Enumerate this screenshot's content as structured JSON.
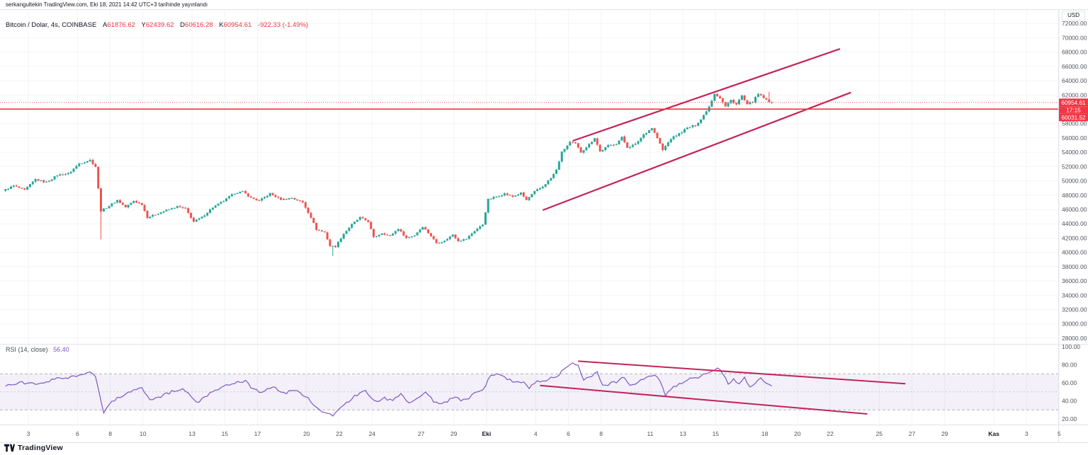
{
  "publish_note": "serkangultekin TradingView.com, Eki 18, 2021 14:42 UTC+3 tarihinde yayınlandı",
  "currency_button": "USD",
  "symbol_header": {
    "title": "Bitcoin / Dolar, 4s, COINBASE",
    "ohlc": [
      {
        "k": "A",
        "v": "61876.62"
      },
      {
        "k": "Y",
        "v": "62439.62"
      },
      {
        "k": "D",
        "v": "60616.28"
      },
      {
        "k": "K",
        "v": "60954.61"
      }
    ],
    "change": "-922.33 (-1.49%)"
  },
  "rsi_header": {
    "label": "RSI",
    "params": "(14, close)",
    "value": "56.40"
  },
  "axis_badges": {
    "last": "60954.61",
    "countdown": "17:15",
    "hline": "60031.52"
  },
  "logo": {
    "name": "TradingView"
  },
  "colors": {
    "up": "#26a69a",
    "down": "#ef5350",
    "red_line": "#f23645",
    "badge": "#f23645",
    "channel": "#c2235a",
    "rsi_line": "#7e57c2",
    "rsi_band_fill": "rgba(126,87,194,0.09)",
    "band_edge": "rgba(120,123,134,0.55)",
    "band_mid": "rgba(120,123,134,0.35)",
    "grid": "rgba(42,46,57,0.05)",
    "separator": "#e0e3eb",
    "axis_text": "#50535e",
    "month_text": "#131722"
  },
  "chart_data": {
    "type": "candlestick",
    "symbol": "Bitcoin / Dolar",
    "exchange": "COINBASE",
    "interval": "4s",
    "ohlc_current": {
      "open": 61876.62,
      "high": 62439.62,
      "low": 60616.28,
      "close": 60954.61,
      "change": -922.33,
      "change_pct": -1.49
    },
    "last_close": 60954.61,
    "hline_price": 60031.52,
    "n_candles": 282,
    "price_axis": {
      "min": 28000,
      "max": 72000,
      "step": 2000
    },
    "rsi_axis": {
      "ticks": [
        100,
        80,
        60,
        40,
        20
      ],
      "bands": [
        70,
        50,
        30
      ]
    },
    "x_ticks": [
      {
        "label": "3",
        "day": 1
      },
      {
        "label": "6",
        "day": 4
      },
      {
        "label": "8",
        "day": 6
      },
      {
        "label": "10",
        "day": 8
      },
      {
        "label": "13",
        "day": 11
      },
      {
        "label": "15",
        "day": 13
      },
      {
        "label": "17",
        "day": 15
      },
      {
        "label": "20",
        "day": 18
      },
      {
        "label": "22",
        "day": 20
      },
      {
        "label": "24",
        "day": 22
      },
      {
        "label": "27",
        "day": 25
      },
      {
        "label": "29",
        "day": 27
      },
      {
        "label": "Eki",
        "day": 29,
        "month": true
      },
      {
        "label": "4",
        "day": 32
      },
      {
        "label": "6",
        "day": 34
      },
      {
        "label": "8",
        "day": 36
      },
      {
        "label": "11",
        "day": 39
      },
      {
        "label": "13",
        "day": 41
      },
      {
        "label": "15",
        "day": 43
      },
      {
        "label": "18",
        "day": 46
      },
      {
        "label": "20",
        "day": 48
      },
      {
        "label": "22",
        "day": 50
      },
      {
        "label": "25",
        "day": 53
      },
      {
        "label": "27",
        "day": 55
      },
      {
        "label": "29",
        "day": 57
      },
      {
        "label": "Kas",
        "day": 60,
        "month": true
      },
      {
        "label": "3",
        "day": 62
      },
      {
        "label": "5",
        "day": 64
      }
    ],
    "price_anchors": [
      [
        0,
        48600
      ],
      [
        4,
        49300
      ],
      [
        8,
        48700
      ],
      [
        12,
        50200
      ],
      [
        16,
        49800
      ],
      [
        20,
        50800
      ],
      [
        24,
        51000
      ],
      [
        28,
        52400
      ],
      [
        32,
        52900
      ],
      [
        34,
        52000
      ],
      [
        36,
        45800
      ],
      [
        39,
        46500
      ],
      [
        42,
        47300
      ],
      [
        45,
        46300
      ],
      [
        48,
        47200
      ],
      [
        51,
        46700
      ],
      [
        53,
        44900
      ],
      [
        56,
        45300
      ],
      [
        60,
        45900
      ],
      [
        64,
        46400
      ],
      [
        67,
        46100
      ],
      [
        70,
        44300
      ],
      [
        73,
        44900
      ],
      [
        77,
        46300
      ],
      [
        81,
        47200
      ],
      [
        85,
        48300
      ],
      [
        88,
        48500
      ],
      [
        91,
        47600
      ],
      [
        94,
        47200
      ],
      [
        98,
        48200
      ],
      [
        102,
        47400
      ],
      [
        106,
        47600
      ],
      [
        110,
        47000
      ],
      [
        113,
        44900
      ],
      [
        115,
        43200
      ],
      [
        118,
        42800
      ],
      [
        120,
        40900
      ],
      [
        122,
        40800
      ],
      [
        125,
        42600
      ],
      [
        128,
        43900
      ],
      [
        131,
        44900
      ],
      [
        134,
        44300
      ],
      [
        136,
        42100
      ],
      [
        139,
        42700
      ],
      [
        142,
        42300
      ],
      [
        145,
        43300
      ],
      [
        148,
        42000
      ],
      [
        151,
        42400
      ],
      [
        154,
        43600
      ],
      [
        157,
        42300
      ],
      [
        159,
        41300
      ],
      [
        162,
        41600
      ],
      [
        165,
        42500
      ],
      [
        167,
        41600
      ],
      [
        170,
        41900
      ],
      [
        173,
        43000
      ],
      [
        176,
        43900
      ],
      [
        178,
        47400
      ],
      [
        181,
        47800
      ],
      [
        184,
        48200
      ],
      [
        187,
        47800
      ],
      [
        190,
        48300
      ],
      [
        192,
        47300
      ],
      [
        195,
        48500
      ],
      [
        198,
        49200
      ],
      [
        201,
        50400
      ],
      [
        203,
        51500
      ],
      [
        205,
        54000
      ],
      [
        208,
        55400
      ],
      [
        210,
        55200
      ],
      [
        212,
        54000
      ],
      [
        215,
        55100
      ],
      [
        217,
        56000
      ],
      [
        219,
        54100
      ],
      [
        222,
        54900
      ],
      [
        225,
        55200
      ],
      [
        227,
        56100
      ],
      [
        229,
        54700
      ],
      [
        232,
        55100
      ],
      [
        235,
        56500
      ],
      [
        238,
        57400
      ],
      [
        240,
        56000
      ],
      [
        242,
        54300
      ],
      [
        245,
        55900
      ],
      [
        248,
        56600
      ],
      [
        251,
        57400
      ],
      [
        254,
        57800
      ],
      [
        256,
        58600
      ],
      [
        259,
        60400
      ],
      [
        261,
        62200
      ],
      [
        263,
        61600
      ],
      [
        265,
        60400
      ],
      [
        267,
        61300
      ],
      [
        269,
        60700
      ],
      [
        271,
        61900
      ],
      [
        273,
        60600
      ],
      [
        275,
        61100
      ],
      [
        277,
        62100
      ],
      [
        279,
        61600
      ],
      [
        281,
        60954.61
      ]
    ],
    "wick_overrides": [
      {
        "i": 35,
        "low": 41800
      },
      {
        "i": 120,
        "low": 39500
      },
      {
        "i": 280,
        "high": 62439.62
      }
    ],
    "channel_lines": [
      {
        "i1": 208,
        "p1": 55600,
        "i2": 306,
        "p2": 68450
      },
      {
        "i1": 197,
        "p1": 45900,
        "i2": 310,
        "p2": 62350
      }
    ],
    "rsi": {
      "current": 56.4,
      "anchors": [
        [
          0,
          56
        ],
        [
          6,
          60
        ],
        [
          12,
          58
        ],
        [
          18,
          64
        ],
        [
          24,
          66
        ],
        [
          31,
          71
        ],
        [
          33,
          67
        ],
        [
          36,
          26
        ],
        [
          39,
          40
        ],
        [
          43,
          46
        ],
        [
          47,
          52
        ],
        [
          50,
          55
        ],
        [
          53,
          40
        ],
        [
          57,
          45
        ],
        [
          61,
          50
        ],
        [
          65,
          53
        ],
        [
          67,
          48
        ],
        [
          70,
          38
        ],
        [
          73,
          44
        ],
        [
          77,
          52
        ],
        [
          81,
          57
        ],
        [
          85,
          61
        ],
        [
          88,
          62
        ],
        [
          91,
          52
        ],
        [
          94,
          50
        ],
        [
          98,
          55
        ],
        [
          102,
          49
        ],
        [
          106,
          51
        ],
        [
          110,
          46
        ],
        [
          113,
          34
        ],
        [
          116,
          29
        ],
        [
          120,
          24
        ],
        [
          125,
          38
        ],
        [
          129,
          47
        ],
        [
          132,
          52
        ],
        [
          136,
          38
        ],
        [
          139,
          43
        ],
        [
          142,
          40
        ],
        [
          145,
          48
        ],
        [
          148,
          38
        ],
        [
          151,
          42
        ],
        [
          154,
          50
        ],
        [
          157,
          40
        ],
        [
          159,
          36
        ],
        [
          162,
          39
        ],
        [
          165,
          45
        ],
        [
          167,
          40
        ],
        [
          170,
          43
        ],
        [
          173,
          50
        ],
        [
          176,
          55
        ],
        [
          178,
          70
        ],
        [
          181,
          68
        ],
        [
          184,
          65
        ],
        [
          187,
          60
        ],
        [
          190,
          62
        ],
        [
          192,
          55
        ],
        [
          195,
          61
        ],
        [
          198,
          63
        ],
        [
          201,
          66
        ],
        [
          203,
          69
        ],
        [
          205,
          76
        ],
        [
          208,
          83
        ],
        [
          210,
          78
        ],
        [
          212,
          62
        ],
        [
          215,
          68
        ],
        [
          217,
          72
        ],
        [
          219,
          56
        ],
        [
          222,
          60
        ],
        [
          225,
          62
        ],
        [
          227,
          67
        ],
        [
          229,
          57
        ],
        [
          232,
          60
        ],
        [
          235,
          66
        ],
        [
          238,
          70
        ],
        [
          240,
          62
        ],
        [
          242,
          46
        ],
        [
          245,
          55
        ],
        [
          248,
          59
        ],
        [
          251,
          64
        ],
        [
          254,
          66
        ],
        [
          256,
          69
        ],
        [
          259,
          73
        ],
        [
          261,
          77
        ],
        [
          263,
          71
        ],
        [
          265,
          58
        ],
        [
          267,
          63
        ],
        [
          269,
          58
        ],
        [
          271,
          66
        ],
        [
          273,
          56
        ],
        [
          275,
          60
        ],
        [
          277,
          66
        ],
        [
          279,
          60
        ],
        [
          281,
          56.4
        ]
      ],
      "trend_lines": [
        {
          "i1": 210,
          "v1": 84,
          "i2": 330,
          "v2": 59
        },
        {
          "i1": 196,
          "v1": 57,
          "i2": 316,
          "v2": 25.5
        }
      ]
    }
  }
}
